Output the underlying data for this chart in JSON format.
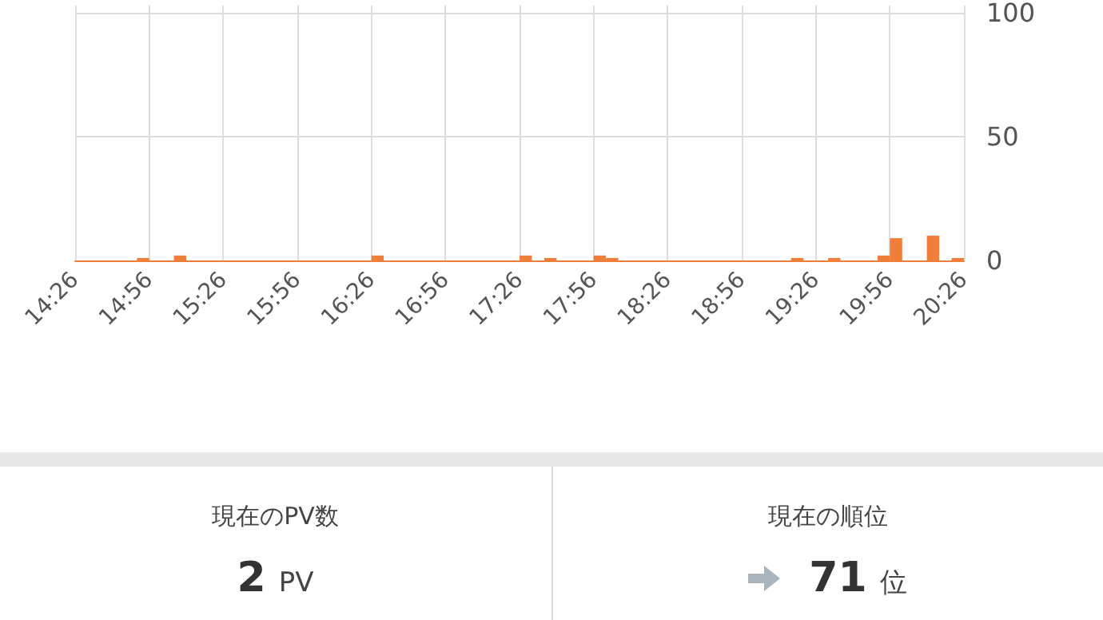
{
  "chart_data": [
    {
      "type": "histogram",
      "color": "#f07f3c",
      "grid": true,
      "bins": [
        14.4333,
        14.5167,
        14.6,
        14.6833,
        14.7667,
        14.85,
        14.9333,
        15.0167,
        15.1,
        15.1833,
        15.2667,
        15.35,
        15.4333,
        15.5167,
        15.6,
        15.6833,
        15.7667,
        15.85,
        15.9333,
        16.0167,
        16.1,
        16.1833,
        16.2667,
        16.35,
        16.4333,
        16.5167,
        16.6,
        16.6833,
        16.7667,
        16.85,
        16.9333,
        17.0167,
        17.1,
        17.1833,
        17.2667,
        17.35,
        17.4333,
        17.5167,
        17.6,
        17.6833,
        17.7667,
        17.85,
        17.9333,
        18.0167,
        18.1,
        18.1833,
        18.2667,
        18.35,
        18.4333,
        18.5167,
        18.6,
        18.6833,
        18.7667,
        18.85,
        18.9333,
        19.0167,
        19.1,
        19.1833,
        19.2667,
        19.35,
        19.4333,
        19.5167,
        19.6,
        19.6833,
        19.7667,
        19.85,
        19.9333,
        20.0167,
        20.1,
        20.1833,
        20.2667,
        20.35,
        20.4333
      ],
      "values": [
        0,
        0,
        0,
        0,
        0,
        1,
        0,
        0,
        2,
        0,
        0,
        0,
        0,
        0,
        0,
        0,
        0,
        0,
        0,
        0,
        0,
        0,
        0,
        0,
        2,
        0,
        0,
        0,
        0,
        0,
        0,
        0,
        0,
        0,
        0,
        0,
        2,
        0,
        1,
        0,
        0,
        0,
        2,
        1,
        0,
        0,
        0,
        0,
        0,
        0,
        0,
        0,
        0,
        0,
        0,
        0,
        0,
        0,
        1,
        0,
        0,
        1,
        0,
        0,
        0,
        2,
        9,
        null,
        null,
        10,
        0,
        1
      ],
      "xlim": [
        14.4333,
        20.4333
      ],
      "xticks": [
        {
          "value": 14.4333,
          "label": "14:26"
        },
        {
          "value": 14.9333,
          "label": "14:56"
        },
        {
          "value": 15.4333,
          "label": "15:26"
        },
        {
          "value": 15.9333,
          "label": "15:56"
        },
        {
          "value": 16.4333,
          "label": "16:26"
        },
        {
          "value": 16.9333,
          "label": "16:56"
        },
        {
          "value": 17.4333,
          "label": "17:26"
        },
        {
          "value": 17.9333,
          "label": "17:56"
        },
        {
          "value": 18.4333,
          "label": "18:26"
        },
        {
          "value": 18.9333,
          "label": "18:56"
        },
        {
          "value": 19.4333,
          "label": "19:26"
        },
        {
          "value": 19.9333,
          "label": "19:56"
        },
        {
          "value": 20.4333,
          "label": "20:26"
        }
      ],
      "ylim": [
        0,
        103
      ],
      "yticks": [
        0,
        50,
        100
      ]
    },
    {
      "type": "other",
      "title": "現在のPV数",
      "annotations": [
        "2",
        "PV"
      ]
    },
    {
      "type": "other",
      "title": "現在の順位",
      "annotations": [
        "71",
        "位"
      ]
    }
  ]
}
